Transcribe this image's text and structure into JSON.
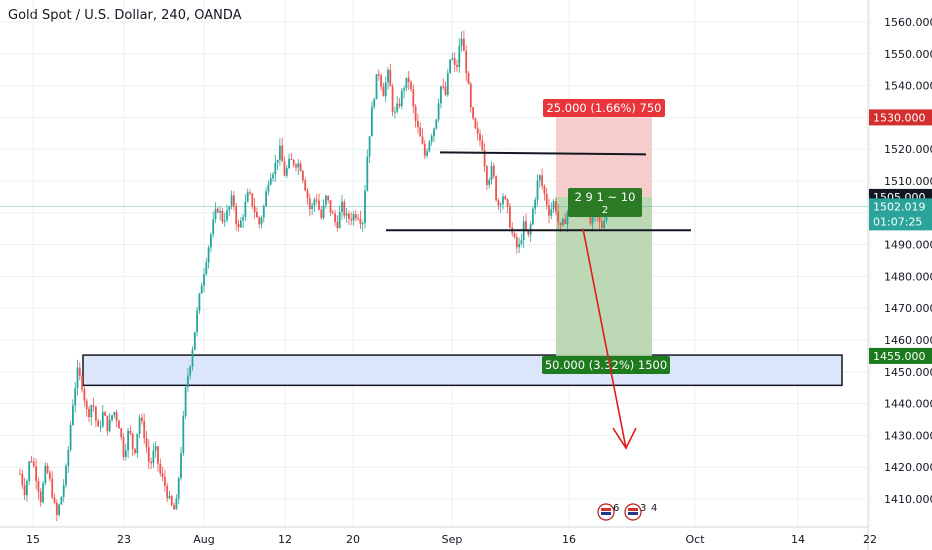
{
  "chart_title": "Gold Spot / U.S. Dollar, 240, OANDA",
  "chart_data": {
    "type": "candlestick",
    "title": "Gold Spot / U.S. Dollar, 240, OANDA",
    "ylim": [
      1402,
      1563
    ],
    "yticks": [
      1410,
      1420,
      1430,
      1440,
      1450,
      1460,
      1470,
      1480,
      1490,
      1500,
      1510,
      1520,
      1530,
      1540,
      1550,
      1560
    ],
    "xticks": [
      "15",
      "23",
      "Aug",
      "12",
      "20",
      "Sep",
      "16",
      "Oct",
      "14",
      "22"
    ],
    "last_price": "1502.019",
    "countdown": "01:07:25",
    "price_labels": [
      {
        "value": 1530,
        "text": "1530.000",
        "color": "#d32f2f"
      },
      {
        "value": 1505,
        "text": "1505.000",
        "color": "#131722"
      },
      {
        "value": 1455,
        "text": "1455.000",
        "color": "#1b7a1b"
      }
    ],
    "candle_path": [
      1418,
      1412,
      1424,
      1418,
      1410,
      1420,
      1414,
      1404,
      1411,
      1420,
      1438,
      1450,
      1446,
      1436,
      1441,
      1431,
      1437,
      1432,
      1438,
      1434,
      1424,
      1432,
      1424,
      1436,
      1430,
      1420,
      1426,
      1418,
      1414,
      1408,
      1406,
      1425,
      1446,
      1455,
      1467,
      1478,
      1487,
      1495,
      1502,
      1498,
      1500,
      1505,
      1494,
      1500,
      1506,
      1502,
      1496,
      1502,
      1512,
      1514,
      1520,
      1512,
      1516,
      1516,
      1515,
      1508,
      1500,
      1506,
      1498,
      1505,
      1500,
      1496,
      1502,
      1498,
      1499,
      1500,
      1497,
      1520,
      1535,
      1545,
      1538,
      1544,
      1530,
      1534,
      1540,
      1542,
      1530,
      1524,
      1518,
      1524,
      1528,
      1540,
      1537,
      1550,
      1544,
      1556,
      1545,
      1530,
      1524,
      1522,
      1510,
      1514,
      1502,
      1506,
      1500,
      1492,
      1488,
      1496,
      1492,
      1503,
      1512,
      1506,
      1500,
      1504,
      1494,
      1498,
      1503,
      1505,
      1500,
      1503,
      1496,
      1500,
      1495,
      1502
    ],
    "resistance_line": {
      "from_x": "Sep",
      "value": 1519
    },
    "support_line": {
      "from_x": "20",
      "value": 1494.5
    },
    "demand_zone": {
      "low": 1447,
      "high": 1454
    },
    "risk_box": {
      "from": 1505,
      "to": 1530,
      "label": "25.000 (1.66%) 750"
    },
    "reward_box": {
      "from": 1455,
      "to": 1505,
      "label": "50.000 (3.32%) 1500"
    },
    "ratio_label": {
      "line1": "2 9 1 ~ 10",
      "line2": "2"
    },
    "arrow": {
      "from_value": 1495,
      "to_value": 1426
    },
    "event_badges": [
      {
        "count": "6"
      },
      {
        "count": "3"
      },
      {
        "count": "4"
      }
    ],
    "colors": {
      "up": "#26a69a",
      "down": "#ef5350",
      "grid": "#eceff2",
      "demand": "#dce6fb",
      "risk": "#f6c7c7",
      "reward": "#b9d6b0",
      "arrow": "#e21b1b"
    }
  }
}
